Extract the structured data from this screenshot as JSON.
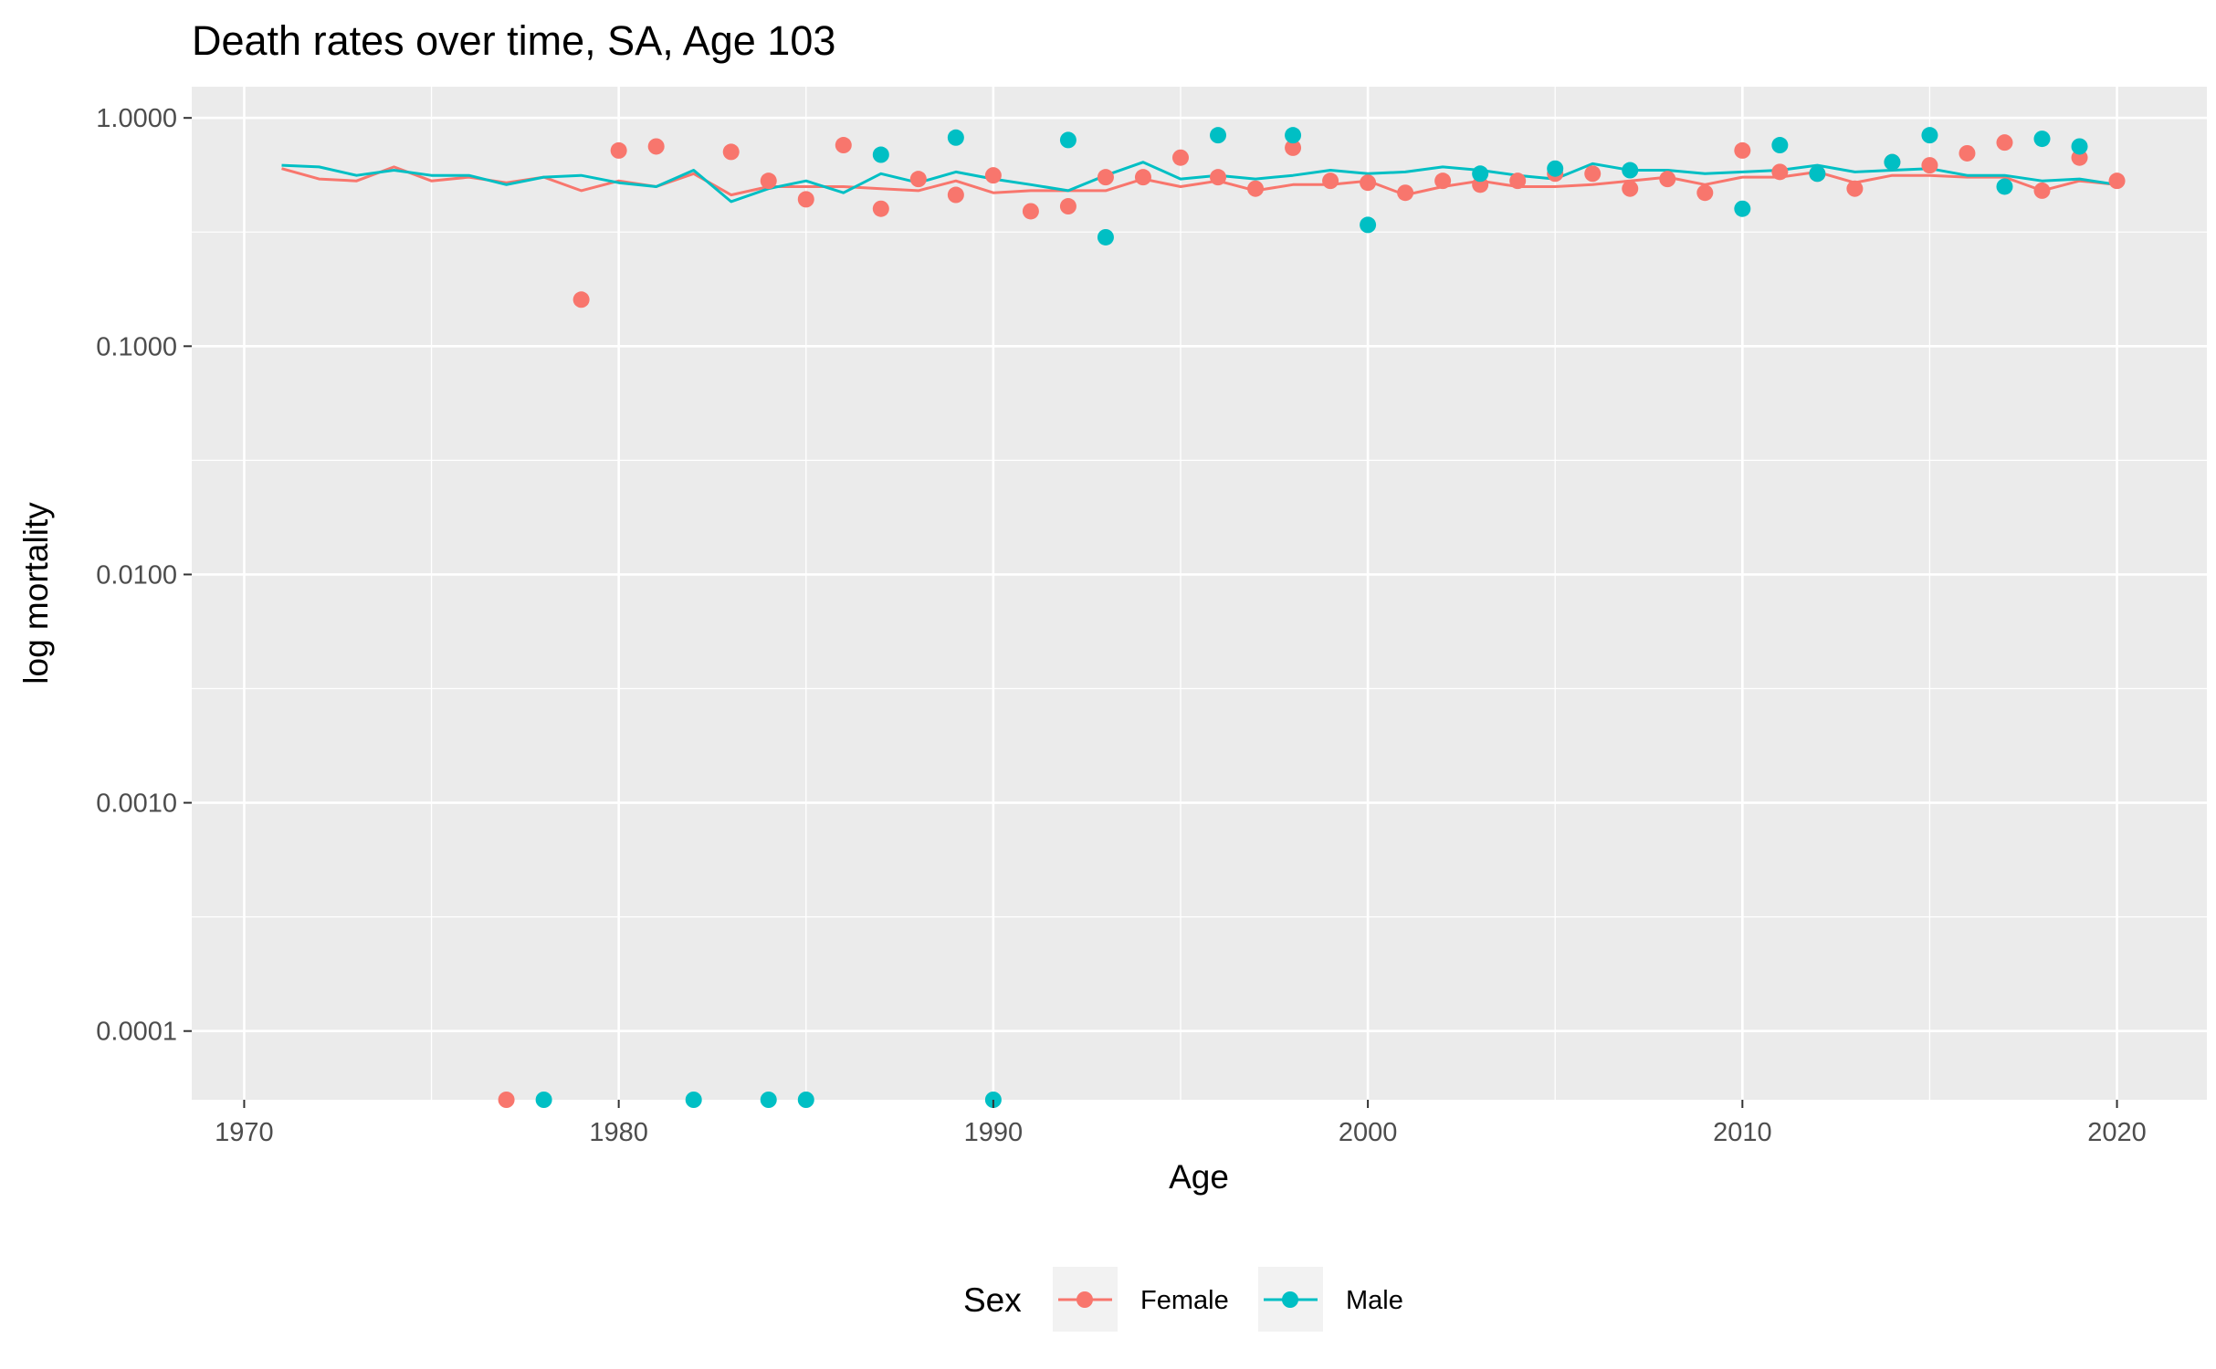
{
  "chart_data": {
    "type": "line",
    "title": "Death rates over time, SA, Age 103",
    "xlabel": "Age",
    "ylabel": "log mortality",
    "y_scale": "log",
    "x_ticks": [
      1970,
      1980,
      1990,
      2000,
      2010,
      2020
    ],
    "x_tick_labels": [
      "1970",
      "1980",
      "1990",
      "2000",
      "2010",
      "2020"
    ],
    "y_ticks": [
      0.0001,
      0.001,
      0.01,
      0.1,
      1
    ],
    "y_tick_labels": [
      "0.0001",
      "0.0010",
      "0.0100",
      "0.1000",
      "1.0000"
    ],
    "xlim": [
      1968.6,
      2022.4
    ],
    "ylim": [
      5e-05,
      1.37
    ],
    "grid": true,
    "legend": {
      "title": "Sex",
      "position": "bottom",
      "entries": [
        "Female",
        "Male"
      ]
    },
    "colors": {
      "Female": "#F8766D",
      "Male": "#00BFC4"
    },
    "series": [
      {
        "name": "Female",
        "points": [
          [
            1977,
            5e-05
          ],
          [
            1979,
            0.16
          ],
          [
            1980,
            0.72
          ],
          [
            1981,
            0.75
          ],
          [
            1983,
            0.71
          ],
          [
            1984,
            0.53
          ],
          [
            1985,
            0.44
          ],
          [
            1986,
            0.76
          ],
          [
            1987,
            0.4
          ],
          [
            1988,
            0.54
          ],
          [
            1989,
            0.46
          ],
          [
            1990,
            0.56
          ],
          [
            1991,
            0.39
          ],
          [
            1992,
            0.41
          ],
          [
            1993,
            0.55
          ],
          [
            1994,
            0.55
          ],
          [
            1995,
            0.67
          ],
          [
            1996,
            0.55
          ],
          [
            1997,
            0.49
          ],
          [
            1998,
            0.74
          ],
          [
            1999,
            0.53
          ],
          [
            2000,
            0.52
          ],
          [
            2001,
            0.47
          ],
          [
            2002,
            0.53
          ],
          [
            2003,
            0.51
          ],
          [
            2004,
            0.53
          ],
          [
            2005,
            0.57
          ],
          [
            2006,
            0.57
          ],
          [
            2007,
            0.49
          ],
          [
            2008,
            0.54
          ],
          [
            2009,
            0.47
          ],
          [
            2010,
            0.72
          ],
          [
            2011,
            0.58
          ],
          [
            2012,
            0.57
          ],
          [
            2013,
            0.49
          ],
          [
            2014,
            0.64
          ],
          [
            2015,
            0.62
          ],
          [
            2016,
            0.7
          ],
          [
            2017,
            0.78
          ],
          [
            2018,
            0.48
          ],
          [
            2019,
            0.67
          ],
          [
            2020,
            0.53
          ]
        ],
        "line": [
          [
            1971,
            0.6
          ],
          [
            1972,
            0.54
          ],
          [
            1973,
            0.53
          ],
          [
            1974,
            0.61
          ],
          [
            1975,
            0.53
          ],
          [
            1976,
            0.55
          ],
          [
            1977,
            0.52
          ],
          [
            1978,
            0.55
          ],
          [
            1979,
            0.48
          ],
          [
            1980,
            0.53
          ],
          [
            1981,
            0.5
          ],
          [
            1982,
            0.57
          ],
          [
            1983,
            0.46
          ],
          [
            1984,
            0.5
          ],
          [
            1985,
            0.5
          ],
          [
            1986,
            0.5
          ],
          [
            1987,
            0.49
          ],
          [
            1988,
            0.48
          ],
          [
            1989,
            0.53
          ],
          [
            1990,
            0.47
          ],
          [
            1991,
            0.48
          ],
          [
            1992,
            0.48
          ],
          [
            1993,
            0.48
          ],
          [
            1994,
            0.54
          ],
          [
            1995,
            0.5
          ],
          [
            1996,
            0.53
          ],
          [
            1997,
            0.48
          ],
          [
            1998,
            0.51
          ],
          [
            1999,
            0.51
          ],
          [
            2000,
            0.53
          ],
          [
            2001,
            0.46
          ],
          [
            2002,
            0.5
          ],
          [
            2003,
            0.53
          ],
          [
            2004,
            0.5
          ],
          [
            2005,
            0.5
          ],
          [
            2006,
            0.51
          ],
          [
            2007,
            0.53
          ],
          [
            2008,
            0.55
          ],
          [
            2009,
            0.51
          ],
          [
            2010,
            0.55
          ],
          [
            2011,
            0.55
          ],
          [
            2012,
            0.58
          ],
          [
            2013,
            0.52
          ],
          [
            2014,
            0.56
          ],
          [
            2015,
            0.56
          ],
          [
            2016,
            0.55
          ],
          [
            2017,
            0.55
          ],
          [
            2018,
            0.48
          ],
          [
            2019,
            0.53
          ],
          [
            2020,
            0.51
          ]
        ]
      },
      {
        "name": "Male",
        "points": [
          [
            1978,
            5e-05
          ],
          [
            1982,
            5e-05
          ],
          [
            1984,
            5e-05
          ],
          [
            1985,
            5e-05
          ],
          [
            1987,
            0.69
          ],
          [
            1989,
            0.82
          ],
          [
            1990,
            5e-05
          ],
          [
            1992,
            0.8
          ],
          [
            1993,
            0.3
          ],
          [
            1996,
            0.84
          ],
          [
            1998,
            0.84
          ],
          [
            2000,
            0.34
          ],
          [
            2003,
            0.57
          ],
          [
            2005,
            0.6
          ],
          [
            2007,
            0.59
          ],
          [
            2010,
            0.4
          ],
          [
            2011,
            0.76
          ],
          [
            2012,
            0.57
          ],
          [
            2014,
            0.64
          ],
          [
            2015,
            0.84
          ],
          [
            2017,
            0.5
          ],
          [
            2018,
            0.81
          ],
          [
            2019,
            0.75
          ]
        ],
        "line": [
          [
            1971,
            0.62
          ],
          [
            1972,
            0.61
          ],
          [
            1973,
            0.56
          ],
          [
            1974,
            0.59
          ],
          [
            1975,
            0.56
          ],
          [
            1976,
            0.56
          ],
          [
            1977,
            0.51
          ],
          [
            1978,
            0.55
          ],
          [
            1979,
            0.56
          ],
          [
            1980,
            0.52
          ],
          [
            1981,
            0.5
          ],
          [
            1982,
            0.59
          ],
          [
            1983,
            0.43
          ],
          [
            1984,
            0.49
          ],
          [
            1985,
            0.53
          ],
          [
            1986,
            0.47
          ],
          [
            1987,
            0.57
          ],
          [
            1988,
            0.52
          ],
          [
            1989,
            0.58
          ],
          [
            1990,
            0.54
          ],
          [
            1991,
            0.51
          ],
          [
            1992,
            0.48
          ],
          [
            1993,
            0.56
          ],
          [
            1994,
            0.64
          ],
          [
            1995,
            0.54
          ],
          [
            1996,
            0.56
          ],
          [
            1997,
            0.54
          ],
          [
            1998,
            0.56
          ],
          [
            1999,
            0.59
          ],
          [
            2000,
            0.57
          ],
          [
            2001,
            0.58
          ],
          [
            2002,
            0.61
          ],
          [
            2003,
            0.59
          ],
          [
            2004,
            0.56
          ],
          [
            2005,
            0.54
          ],
          [
            2006,
            0.63
          ],
          [
            2007,
            0.59
          ],
          [
            2008,
            0.59
          ],
          [
            2009,
            0.57
          ],
          [
            2010,
            0.58
          ],
          [
            2011,
            0.59
          ],
          [
            2012,
            0.62
          ],
          [
            2013,
            0.58
          ],
          [
            2014,
            0.59
          ],
          [
            2015,
            0.6
          ],
          [
            2016,
            0.56
          ],
          [
            2017,
            0.56
          ],
          [
            2018,
            0.53
          ],
          [
            2019,
            0.54
          ],
          [
            2020,
            0.51
          ]
        ]
      }
    ]
  }
}
